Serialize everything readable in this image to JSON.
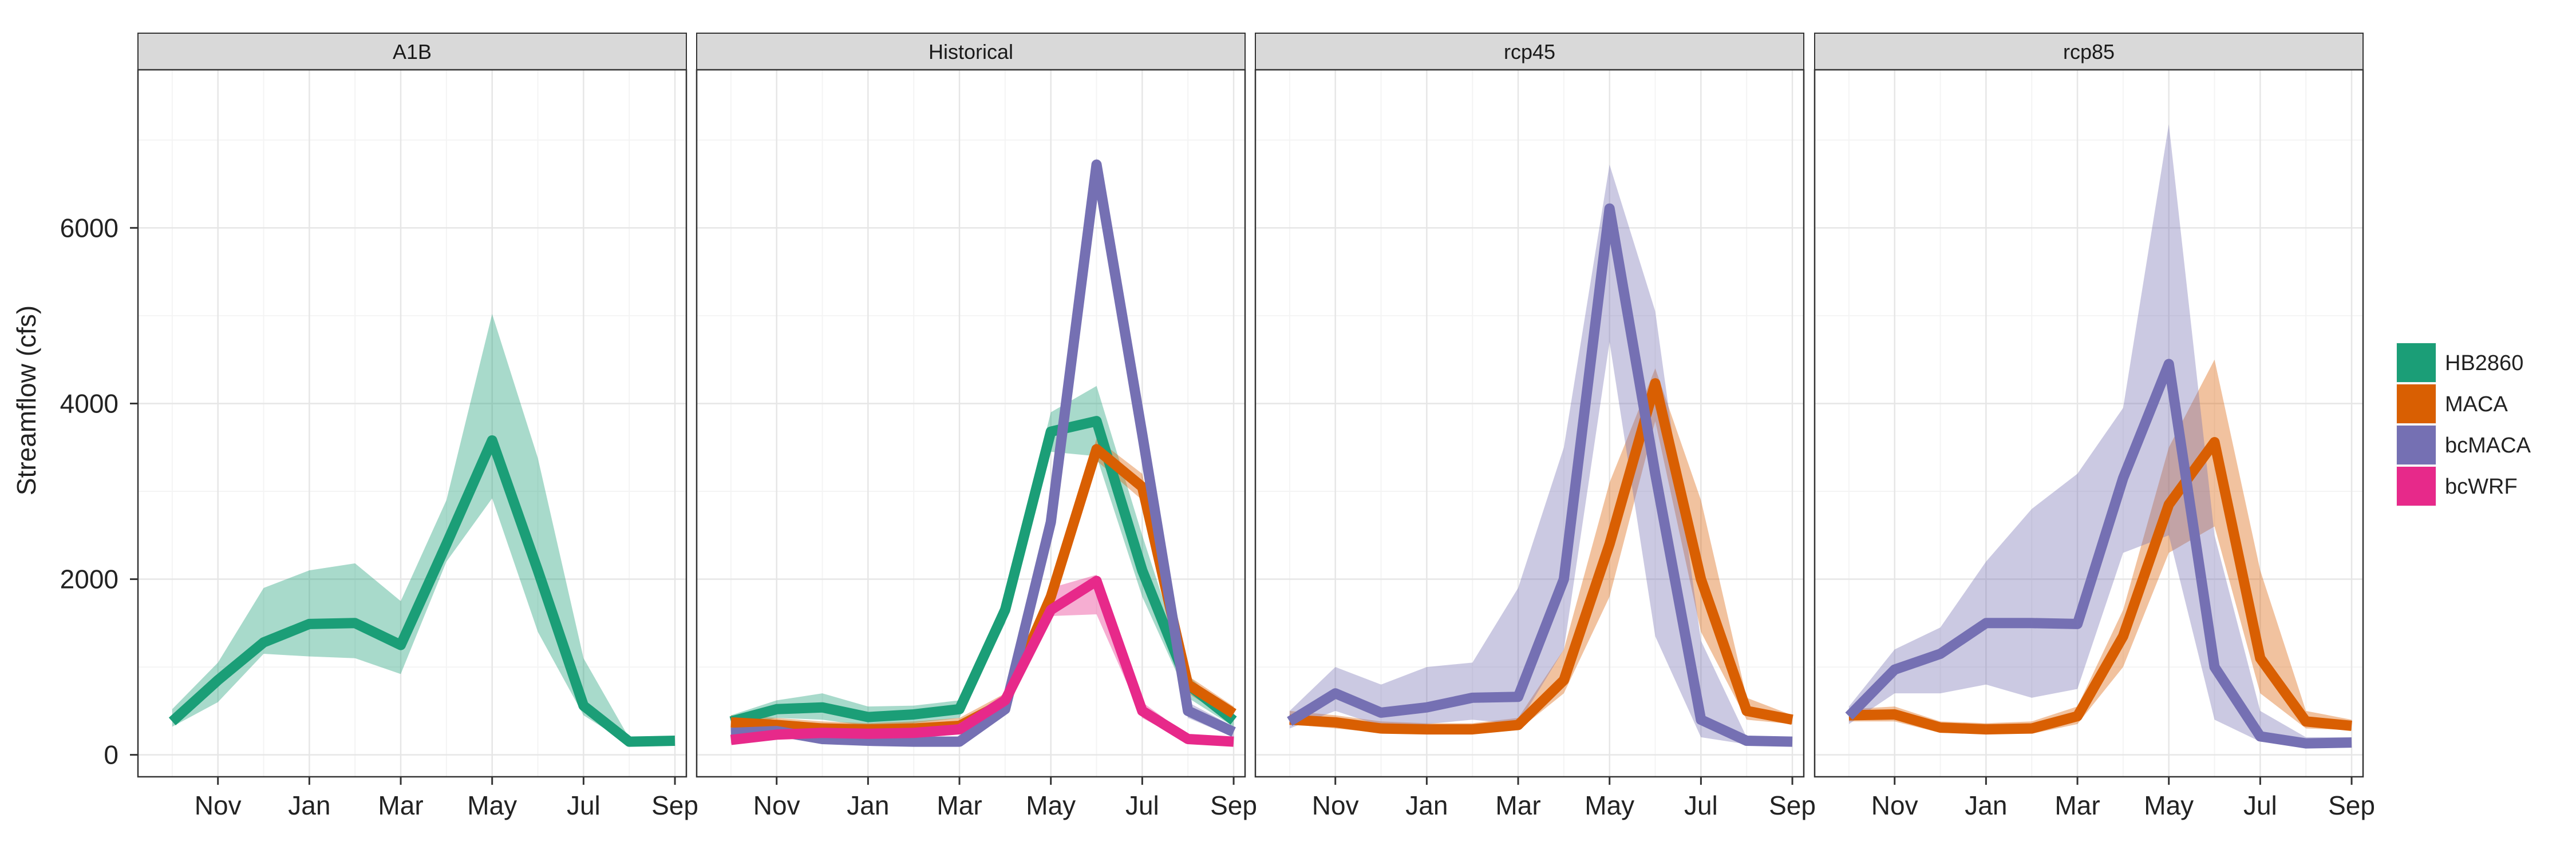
{
  "chart_data": {
    "type": "line",
    "ylabel": "Streamflow (cfs)",
    "ylim": [
      -250,
      7800
    ],
    "y_ticks": [
      0,
      2000,
      4000,
      6000
    ],
    "x_ticks": [
      "Nov",
      "Jan",
      "Mar",
      "May",
      "Jul",
      "Sep"
    ],
    "x_tick_months": [
      1,
      3,
      5,
      7,
      9,
      11
    ],
    "xlim": [
      -0.75,
      11.25
    ],
    "x_months": [
      "Oct",
      "Nov",
      "Dec",
      "Jan",
      "Feb",
      "Mar",
      "Apr",
      "May",
      "Jun",
      "Jul",
      "Aug",
      "Sep"
    ],
    "grid": true,
    "legend_position": "right",
    "legend": [
      {
        "name": "HB2860",
        "color": "#1b9e77"
      },
      {
        "name": "MACA",
        "color": "#d95f02"
      },
      {
        "name": "bcMACA",
        "color": "#7570b3"
      },
      {
        "name": "bcWRF",
        "color": "#e7298a"
      }
    ],
    "panels": [
      {
        "title": "A1B",
        "series": [
          {
            "name": "HB2860",
            "color": "#1b9e77",
            "values": [
              380,
              850,
              1280,
              1490,
              1500,
              1250,
              2400,
              3580,
              2100,
              560,
              150,
              160
            ],
            "upper": [
              520,
              1050,
              1900,
              2100,
              2180,
              1750,
              2900,
              5020,
              3380,
              1100,
              190,
              180
            ],
            "lower": [
              320,
              600,
              1150,
              1120,
              1100,
              920,
              2200,
              2920,
              1400,
              450,
              120,
              150
            ]
          }
        ]
      },
      {
        "title": "Historical",
        "series": [
          {
            "name": "HB2860",
            "color": "#1b9e77",
            "values": [
              380,
              520,
              540,
              430,
              460,
              520,
              1650,
              3680,
              3800,
              2100,
              800,
              390
            ],
            "upper": [
              450,
              620,
              700,
              550,
              560,
              620,
              1800,
              3900,
              4200,
              2500,
              900,
              450
            ],
            "lower": [
              300,
              420,
              400,
              330,
              360,
              420,
              1500,
              3450,
              3400,
              1800,
              650,
              320
            ]
          },
          {
            "name": "MACA",
            "color": "#d95f02",
            "values": [
              370,
              340,
              300,
              290,
              300,
              330,
              600,
              1800,
              3480,
              3050,
              800,
              470
            ],
            "upper": [
              450,
              420,
              380,
              360,
              380,
              420,
              700,
              1950,
              3600,
              3200,
              900,
              550
            ],
            "lower": [
              300,
              270,
              230,
              220,
              230,
              260,
              500,
              1650,
              3350,
              2900,
              700,
              380
            ]
          },
          {
            "name": "bcMACA",
            "color": "#7570b3",
            "values": [
              250,
              270,
              180,
              160,
              150,
              150,
              520,
              2650,
              6720,
              3650,
              500,
              260
            ],
            "upper": [
              300,
              320,
              230,
              210,
              200,
              200,
              600,
              2800,
              6800,
              3800,
              600,
              320
            ],
            "lower": [
              200,
              220,
              140,
              120,
              110,
              110,
              450,
              2500,
              6600,
              3500,
              420,
              200
            ]
          },
          {
            "name": "bcWRF",
            "color": "#e7298a",
            "values": [
              170,
              230,
              250,
              240,
              250,
              290,
              620,
              1650,
              1980,
              500,
              180,
              150
            ],
            "upper": [
              220,
              280,
              300,
              290,
              300,
              350,
              700,
              1900,
              2050,
              600,
              220,
              190
            ],
            "lower": [
              130,
              180,
              200,
              190,
              200,
              240,
              550,
              1580,
              1600,
              420,
              140,
              120
            ]
          }
        ]
      },
      {
        "title": "rcp45",
        "series": [
          {
            "name": "MACA",
            "color": "#d95f02",
            "values": [
              400,
              370,
              300,
              290,
              290,
              340,
              850,
              2400,
              4230,
              2000,
              500,
              400
            ],
            "upper": [
              500,
              450,
              380,
              360,
              360,
              420,
              1200,
              3100,
              4400,
              2900,
              650,
              450
            ],
            "lower": [
              350,
              300,
              250,
              240,
              240,
              280,
              700,
              1800,
              3800,
              1400,
              400,
              350
            ]
          },
          {
            "name": "bcMACA",
            "color": "#7570b3",
            "values": [
              380,
              700,
              480,
              540,
              650,
              660,
              2000,
              6220,
              3200,
              400,
              160,
              150
            ],
            "upper": [
              500,
              1000,
              800,
              1000,
              1050,
              1900,
              3500,
              6720,
              5050,
              1300,
              200,
              180
            ],
            "lower": [
              300,
              500,
              330,
              350,
              400,
              350,
              1200,
              4700,
              1350,
              200,
              120,
              120
            ]
          }
        ]
      },
      {
        "title": "rcp85",
        "series": [
          {
            "name": "MACA",
            "color": "#d95f02",
            "values": [
              450,
              460,
              310,
              290,
              300,
              440,
              1350,
              2850,
              3560,
              1100,
              380,
              330
            ],
            "upper": [
              520,
              550,
              380,
              360,
              380,
              550,
              1650,
              3500,
              4500,
              2100,
              500,
              400
            ],
            "lower": [
              380,
              380,
              250,
              240,
              240,
              350,
              1000,
              2300,
              2600,
              700,
              300,
              280
            ]
          },
          {
            "name": "bcMACA",
            "color": "#7570b3",
            "values": [
              440,
              970,
              1150,
              1500,
              1500,
              1490,
              3150,
              4450,
              1000,
              210,
              130,
              140
            ],
            "upper": [
              550,
              1200,
              1450,
              2200,
              2800,
              3200,
              3950,
              7180,
              2500,
              500,
              200,
              200
            ],
            "lower": [
              350,
              700,
              700,
              800,
              650,
              750,
              2300,
              2500,
              400,
              150,
              100,
              110
            ]
          }
        ]
      }
    ]
  }
}
